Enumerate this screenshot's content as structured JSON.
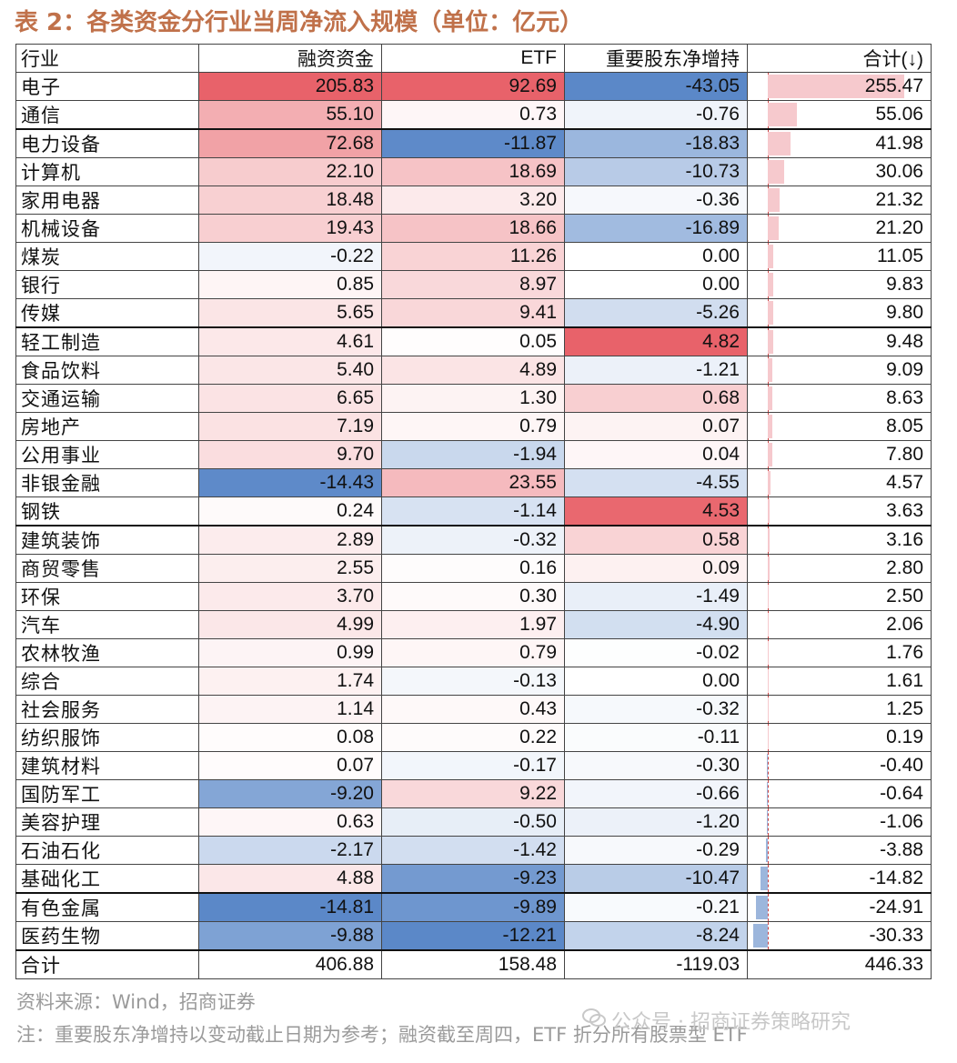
{
  "title": "表 2：各类资金分行业当周净流入规模（单位：亿元）",
  "headers": {
    "industry": "行业",
    "margin": "融资资金",
    "etf": "ETF",
    "holder": "重要股东净增持",
    "total": "合计(↓)"
  },
  "colors": {
    "title": "#c0714a",
    "pos_strong": "#e8626a",
    "neg_strong": "#5b88c8",
    "bar_pos": "#f6c9cd",
    "bar_neg": "#9cb6dc"
  },
  "rows": [
    {
      "name": "电子",
      "margin": "205.83",
      "etf": "92.69",
      "holder": "-43.05",
      "total": "255.47",
      "mv": 205.83,
      "ev": 92.69,
      "hv": -43.05,
      "tv": 255.47
    },
    {
      "name": "通信",
      "margin": "55.10",
      "etf": "0.73",
      "holder": "-0.76",
      "total": "55.06",
      "mv": 55.1,
      "ev": 0.73,
      "hv": -0.76,
      "tv": 55.06
    },
    {
      "name": "电力设备",
      "margin": "72.68",
      "etf": "-11.87",
      "holder": "-18.83",
      "total": "41.98",
      "mv": 72.68,
      "ev": -11.87,
      "hv": -18.83,
      "tv": 41.98
    },
    {
      "name": "计算机",
      "margin": "22.10",
      "etf": "18.69",
      "holder": "-10.73",
      "total": "30.06",
      "mv": 22.1,
      "ev": 18.69,
      "hv": -10.73,
      "tv": 30.06
    },
    {
      "name": "家用电器",
      "margin": "18.48",
      "etf": "3.20",
      "holder": "-0.36",
      "total": "21.32",
      "mv": 18.48,
      "ev": 3.2,
      "hv": -0.36,
      "tv": 21.32
    },
    {
      "name": "机械设备",
      "margin": "19.43",
      "etf": "18.66",
      "holder": "-16.89",
      "total": "21.20",
      "mv": 19.43,
      "ev": 18.66,
      "hv": -16.89,
      "tv": 21.2
    },
    {
      "name": "煤炭",
      "margin": "-0.22",
      "etf": "11.26",
      "holder": "0.00",
      "total": "11.05",
      "mv": -0.22,
      "ev": 11.26,
      "hv": 0.0,
      "tv": 11.05
    },
    {
      "name": "银行",
      "margin": "0.85",
      "etf": "8.97",
      "holder": "0.00",
      "total": "9.83",
      "mv": 0.85,
      "ev": 8.97,
      "hv": 0.0,
      "tv": 9.83
    },
    {
      "name": "传媒",
      "margin": "5.65",
      "etf": "9.41",
      "holder": "-5.26",
      "total": "9.80",
      "mv": 5.65,
      "ev": 9.41,
      "hv": -5.26,
      "tv": 9.8
    },
    {
      "name": "轻工制造",
      "margin": "4.61",
      "etf": "0.05",
      "holder": "4.82",
      "total": "9.48",
      "mv": 4.61,
      "ev": 0.05,
      "hv": 4.82,
      "tv": 9.48
    },
    {
      "name": "食品饮料",
      "margin": "5.40",
      "etf": "4.89",
      "holder": "-1.21",
      "total": "9.09",
      "mv": 5.4,
      "ev": 4.89,
      "hv": -1.21,
      "tv": 9.09
    },
    {
      "name": "交通运输",
      "margin": "6.65",
      "etf": "1.30",
      "holder": "0.68",
      "total": "8.63",
      "mv": 6.65,
      "ev": 1.3,
      "hv": 0.68,
      "tv": 8.63
    },
    {
      "name": "房地产",
      "margin": "7.19",
      "etf": "0.79",
      "holder": "0.07",
      "total": "8.05",
      "mv": 7.19,
      "ev": 0.79,
      "hv": 0.07,
      "tv": 8.05
    },
    {
      "name": "公用事业",
      "margin": "9.70",
      "etf": "-1.94",
      "holder": "0.04",
      "total": "7.80",
      "mv": 9.7,
      "ev": -1.94,
      "hv": 0.04,
      "tv": 7.8
    },
    {
      "name": "非银金融",
      "margin": "-14.43",
      "etf": "23.55",
      "holder": "-4.55",
      "total": "4.57",
      "mv": -14.43,
      "ev": 23.55,
      "hv": -4.55,
      "tv": 4.57
    },
    {
      "name": "钢铁",
      "margin": "0.24",
      "etf": "-1.14",
      "holder": "4.53",
      "total": "3.63",
      "mv": 0.24,
      "ev": -1.14,
      "hv": 4.53,
      "tv": 3.63
    },
    {
      "name": "建筑装饰",
      "margin": "2.89",
      "etf": "-0.32",
      "holder": "0.58",
      "total": "3.16",
      "mv": 2.89,
      "ev": -0.32,
      "hv": 0.58,
      "tv": 3.16
    },
    {
      "name": "商贸零售",
      "margin": "2.55",
      "etf": "0.16",
      "holder": "0.09",
      "total": "2.80",
      "mv": 2.55,
      "ev": 0.16,
      "hv": 0.09,
      "tv": 2.8
    },
    {
      "name": "环保",
      "margin": "3.70",
      "etf": "0.30",
      "holder": "-1.49",
      "total": "2.50",
      "mv": 3.7,
      "ev": 0.3,
      "hv": -1.49,
      "tv": 2.5
    },
    {
      "name": "汽车",
      "margin": "4.99",
      "etf": "1.97",
      "holder": "-4.90",
      "total": "2.06",
      "mv": 4.99,
      "ev": 1.97,
      "hv": -4.9,
      "tv": 2.06
    },
    {
      "name": "农林牧渔",
      "margin": "0.99",
      "etf": "0.79",
      "holder": "-0.02",
      "total": "1.76",
      "mv": 0.99,
      "ev": 0.79,
      "hv": -0.02,
      "tv": 1.76
    },
    {
      "name": "综合",
      "margin": "1.74",
      "etf": "-0.13",
      "holder": "0.00",
      "total": "1.61",
      "mv": 1.74,
      "ev": -0.13,
      "hv": 0.0,
      "tv": 1.61
    },
    {
      "name": "社会服务",
      "margin": "1.14",
      "etf": "0.43",
      "holder": "-0.32",
      "total": "1.25",
      "mv": 1.14,
      "ev": 0.43,
      "hv": -0.32,
      "tv": 1.25
    },
    {
      "name": "纺织服饰",
      "margin": "0.08",
      "etf": "0.22",
      "holder": "-0.11",
      "total": "0.19",
      "mv": 0.08,
      "ev": 0.22,
      "hv": -0.11,
      "tv": 0.19
    },
    {
      "name": "建筑材料",
      "margin": "0.07",
      "etf": "-0.17",
      "holder": "-0.30",
      "total": "-0.40",
      "mv": 0.07,
      "ev": -0.17,
      "hv": -0.3,
      "tv": -0.4
    },
    {
      "name": "国防军工",
      "margin": "-9.20",
      "etf": "9.22",
      "holder": "-0.66",
      "total": "-0.64",
      "mv": -9.2,
      "ev": 9.22,
      "hv": -0.66,
      "tv": -0.64
    },
    {
      "name": "美容护理",
      "margin": "0.63",
      "etf": "-0.50",
      "holder": "-1.20",
      "total": "-1.06",
      "mv": 0.63,
      "ev": -0.5,
      "hv": -1.2,
      "tv": -1.06
    },
    {
      "name": "石油石化",
      "margin": "-2.17",
      "etf": "-1.42",
      "holder": "-0.29",
      "total": "-3.88",
      "mv": -2.17,
      "ev": -1.42,
      "hv": -0.29,
      "tv": -3.88
    },
    {
      "name": "基础化工",
      "margin": "4.88",
      "etf": "-9.23",
      "holder": "-10.47",
      "total": "-14.82",
      "mv": 4.88,
      "ev": -9.23,
      "hv": -10.47,
      "tv": -14.82
    },
    {
      "name": "有色金属",
      "margin": "-14.81",
      "etf": "-9.89",
      "holder": "-0.21",
      "total": "-24.91",
      "mv": -14.81,
      "ev": -9.89,
      "hv": -0.21,
      "tv": -24.91
    },
    {
      "name": "医药生物",
      "margin": "-9.88",
      "etf": "-12.21",
      "holder": "-8.24",
      "total": "-30.33",
      "mv": -9.88,
      "ev": -12.21,
      "hv": -8.24,
      "tv": -30.33
    }
  ],
  "sum": {
    "name": "合计",
    "margin": "406.88",
    "etf": "158.48",
    "holder": "-119.03",
    "total": "446.33"
  },
  "footer": {
    "source": "资料来源：Wind，招商证券",
    "note": "注：重要股东净增持以变动截止日期为参考；融资截至周四，ETF 折分所有股票型 ETF",
    "watermark": "公众号 · 招商证券策略研究"
  }
}
